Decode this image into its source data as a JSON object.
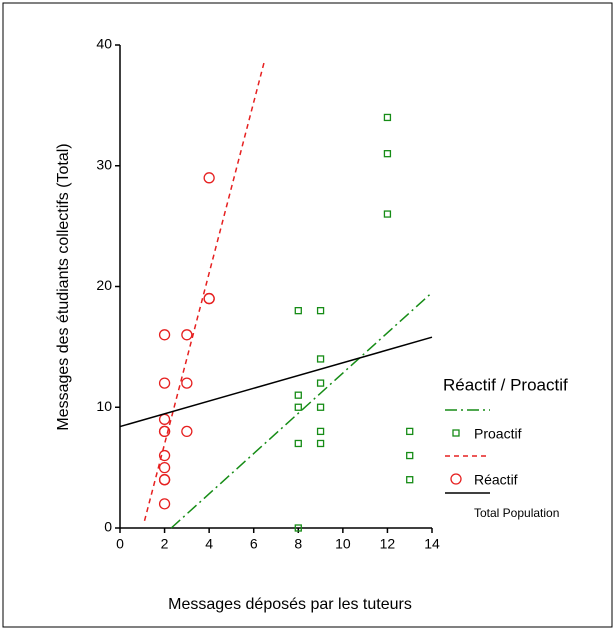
{
  "chart_data": {
    "type": "scatter",
    "xlabel": "Messages déposés par les tuteurs",
    "ylabel": "Messages des étudiants collectifs (Total)",
    "legend_title": "Réactif / Proactif",
    "xlim": [
      0,
      14
    ],
    "xticks": [
      0,
      2,
      4,
      6,
      8,
      10,
      12,
      14
    ],
    "ylim": [
      0,
      40
    ],
    "yticks": [
      0,
      10,
      20,
      30,
      40
    ],
    "series": [
      {
        "name": "Proactif",
        "color": "#168c16",
        "marker": "square",
        "x": [
          8,
          8,
          8,
          8,
          8,
          9,
          9,
          9,
          9,
          9,
          9,
          12,
          12,
          12,
          13,
          13,
          13
        ],
        "values": [
          18,
          11,
          10,
          7,
          0,
          18,
          14,
          12,
          10,
          8,
          7,
          34,
          31,
          26,
          8,
          6,
          4
        ],
        "fit": {
          "x": [
            2.3,
            14
          ],
          "values": [
            0,
            19.5
          ],
          "dash": "dashdot"
        }
      },
      {
        "name": "Réactif",
        "color": "#e62020",
        "marker": "circle",
        "x": [
          2,
          2,
          2,
          2,
          2,
          2,
          2,
          2,
          2,
          2,
          3,
          3,
          3,
          4,
          4,
          4
        ],
        "values": [
          16,
          12,
          9,
          8,
          8,
          6,
          5,
          4,
          4,
          2,
          16,
          12,
          8,
          29,
          19,
          19
        ],
        "fit": {
          "x": [
            1.1,
            6.5
          ],
          "values": [
            0.6,
            38.8
          ],
          "dash": "dash"
        }
      }
    ],
    "total": {
      "name": "Total Population",
      "color": "#000000",
      "x": [
        0,
        14
      ],
      "values": [
        8.4,
        15.8
      ]
    }
  }
}
